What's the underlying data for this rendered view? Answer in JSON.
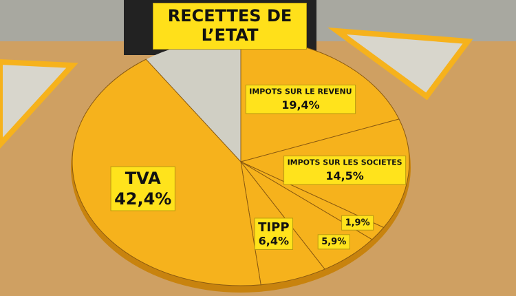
{
  "chart_data": {
    "type": "pie",
    "title": "RECETTES DE L’ETAT",
    "categories": [
      "IMPOTS SUR LE REVENU",
      "IMPOTS SUR LES SOCIETES",
      null,
      null,
      "TIPP",
      "TVA"
    ],
    "values": [
      19.4,
      14.5,
      1.9,
      5.9,
      6.4,
      42.4
    ],
    "value_labels": [
      "19,4%",
      "14,5%",
      "1,9%",
      "5,9%",
      "6,4%",
      "42,4%"
    ],
    "color": "#f6b21c"
  }
}
